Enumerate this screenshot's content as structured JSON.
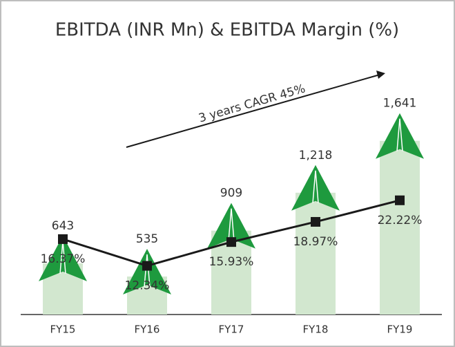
{
  "chart_data": {
    "type": "bar_line",
    "title": "EBITDA (INR Mn) & EBITDA Margin (%)",
    "annotation": "3 years CAGR 45%",
    "categories": [
      "FY15",
      "FY16",
      "FY17",
      "FY18",
      "FY19"
    ],
    "series": [
      {
        "name": "EBITDA (INR Mn)",
        "type": "bar",
        "color": "#1e9a3e",
        "values": [
          643,
          535,
          909,
          1218,
          1641
        ],
        "value_labels": [
          "643",
          "535",
          "909",
          "1,218",
          "1,641"
        ]
      },
      {
        "name": "EBITDA Margin (%)",
        "type": "line",
        "axis": "y2",
        "color": "#1a1a1a",
        "values": [
          16.37,
          12.34,
          15.93,
          18.97,
          22.22
        ],
        "value_labels": [
          "16.37%",
          "12.34%",
          "15.93%",
          "18.97%",
          "22.22%"
        ]
      }
    ],
    "ylim": [
      0,
      2000
    ],
    "y2lim": [
      5,
      42
    ]
  }
}
